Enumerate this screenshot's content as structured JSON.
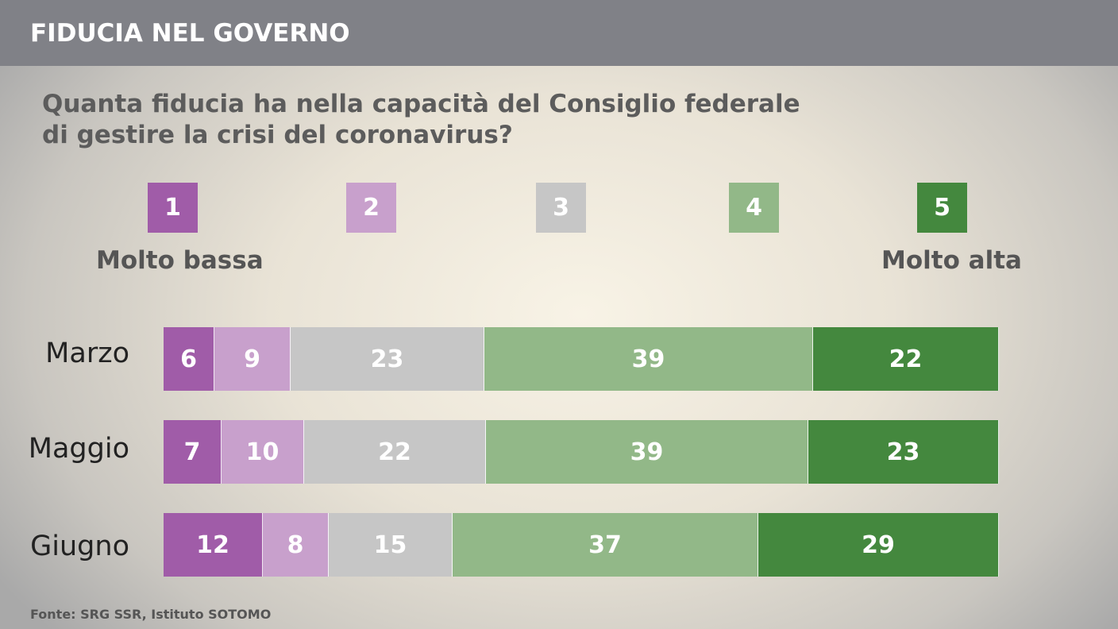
{
  "header": {
    "title": "FIDUCIA NEL GOVERNO"
  },
  "question": {
    "line1": "Quanta fiducia ha nella capacità del Consiglio federale",
    "line2": "di gestire la crisi del coronavirus?"
  },
  "scale": {
    "levels": [
      "1",
      "2",
      "3",
      "4",
      "5"
    ],
    "low_label": "Molto bassa",
    "high_label": "Molto alta"
  },
  "source": "Fonte: SRG SSR, Istituto SOTOMO",
  "chart_data": {
    "type": "bar",
    "orientation": "horizontal",
    "stacked": true,
    "unit": "percent",
    "categories": [
      "Marzo",
      "Maggio",
      "Giugno"
    ],
    "series": [
      {
        "name": "1",
        "values": [
          6,
          7,
          12
        ],
        "color": "#a05ca8"
      },
      {
        "name": "2",
        "values": [
          9,
          10,
          8
        ],
        "color": "#c8a0cc"
      },
      {
        "name": "3",
        "values": [
          23,
          22,
          15
        ],
        "color": "#c6c6c6"
      },
      {
        "name": "4",
        "values": [
          39,
          39,
          37
        ],
        "color": "#92b888"
      },
      {
        "name": "5",
        "values": [
          22,
          23,
          29
        ],
        "color": "#44883e"
      }
    ],
    "legend_placement": "top",
    "grid": false
  }
}
